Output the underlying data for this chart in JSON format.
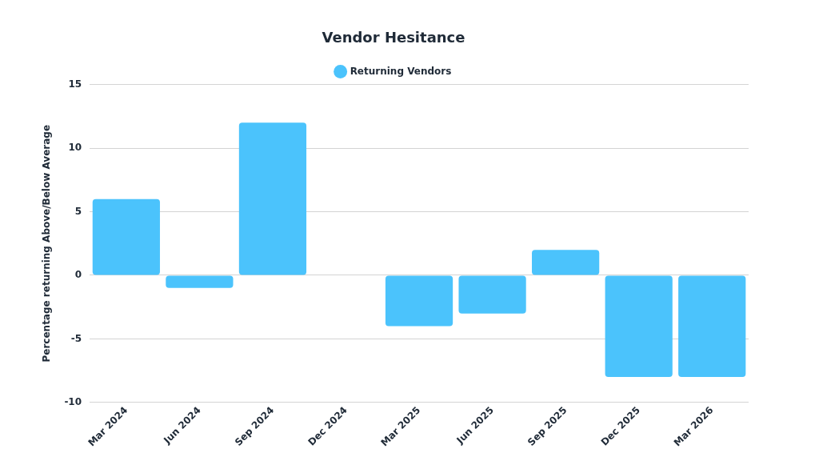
{
  "chart_data": {
    "type": "bar",
    "title": "Vendor Hesitance",
    "ylabel": "Percentage returning Above/Below Average",
    "categories": [
      "Mar 2024",
      "Jun 2024",
      "Sep 2024",
      "Dec 2024",
      "Mar 2025",
      "Jun 2025",
      "Sep 2025",
      "Dec 2025",
      "Mar 2026"
    ],
    "series": [
      {
        "name": "Returning Vendors",
        "color": "#4bc3fc",
        "values": [
          6,
          -1,
          12,
          0,
          -4,
          -3,
          2,
          -8,
          -8
        ]
      }
    ],
    "ylim": [
      -10,
      15
    ],
    "yticks": [
      -10,
      -5,
      0,
      5,
      10,
      15
    ],
    "grid": "y",
    "legend": "top",
    "marker": "circle"
  }
}
